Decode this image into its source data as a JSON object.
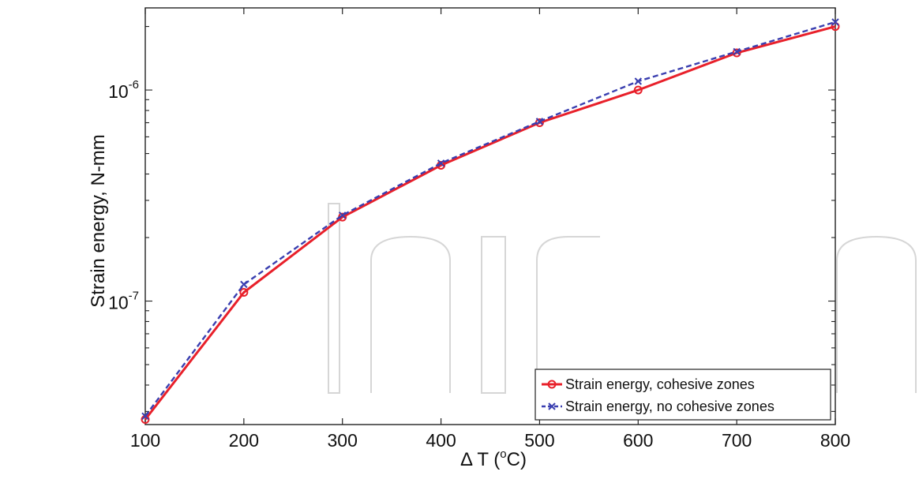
{
  "chart_data": {
    "type": "line",
    "xlabel": "Δ T (°C)",
    "xlabel_parts": {
      "base": "Δ T (",
      "sup": "o",
      "tail": "C)"
    },
    "ylabel": "Strain energy, N-mm",
    "x": [
      100,
      200,
      300,
      400,
      500,
      600,
      700,
      800
    ],
    "xlim": [
      100,
      800
    ],
    "x_ticks": [
      "100",
      "200",
      "300",
      "400",
      "500",
      "600",
      "700",
      "800"
    ],
    "y_scale": "log",
    "ylim": [
      2.6e-08,
      2.45e-06
    ],
    "y_ticks": [
      {
        "value": 1e-07,
        "base": "10",
        "exp": "-7"
      },
      {
        "value": 1e-06,
        "base": "10",
        "exp": "-6"
      }
    ],
    "grid": false,
    "legend_position": "bottom-right",
    "series": [
      {
        "name": "Strain energy, cohesive zones",
        "color": "#e8202a",
        "line_style": "solid",
        "marker": "circle",
        "values": [
          2.75e-08,
          1.1e-07,
          2.5e-07,
          4.4e-07,
          7e-07,
          1e-06,
          1.5e-06,
          2e-06
        ]
      },
      {
        "name": "Strain energy, no cohesive zones",
        "color": "#3a3fb0",
        "line_style": "dashed",
        "marker": "x",
        "values": [
          2.85e-08,
          1.2e-07,
          2.55e-07,
          4.5e-07,
          7.1e-07,
          1.1e-06,
          1.52e-06,
          2.1e-06
        ]
      }
    ]
  }
}
